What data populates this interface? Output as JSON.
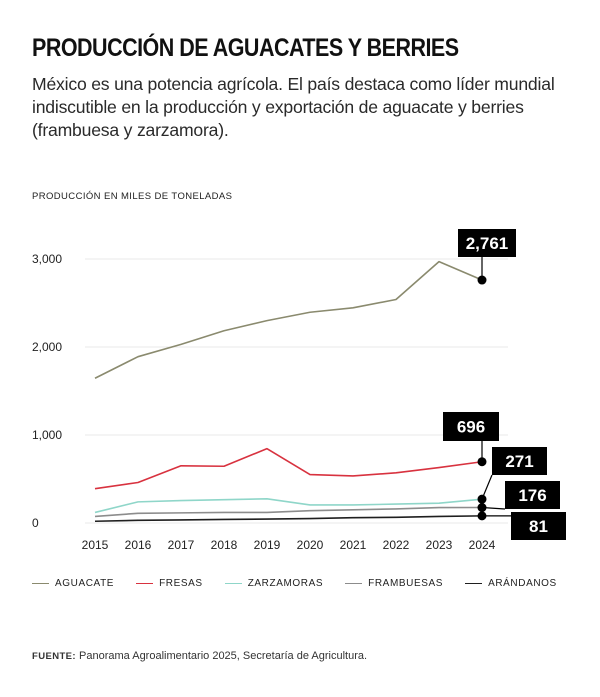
{
  "header": {
    "title": "PRODUCCIÓN DE AGUACATES Y BERRIES",
    "subtitle": "México es una potencia agrícola. El país destaca como líder mundial indiscutible en la producción y exportación de aguacate y berries (frambuesa y zarzamora)."
  },
  "footer": {
    "source_label": "FUENTE:",
    "source_text": "Panorama Agroalimentario 2025, Secretaría de Agricultura."
  },
  "chart_data": {
    "type": "line",
    "title": "PRODUCCIÓN DE AGUACATES Y BERRIES",
    "ylabel": "PRODUCCIÓN EN MILES DE TONELADAS",
    "xlabel": "",
    "x": [
      2015,
      2016,
      2017,
      2018,
      2019,
      2020,
      2021,
      2022,
      2023,
      2024
    ],
    "ylim": [
      0,
      3000
    ],
    "yticks": [
      0,
      1000,
      2000,
      3000
    ],
    "ytick_labels": [
      "0",
      "1,000",
      "2,000",
      "3,000"
    ],
    "grid": true,
    "legend_position": "bottom",
    "series": [
      {
        "name": "AGUACATE",
        "color": "#8a8a6e",
        "values": [
          1645,
          1890,
          2030,
          2185,
          2300,
          2395,
          2445,
          2540,
          2970,
          2761
        ],
        "end_label": "2,761"
      },
      {
        "name": "FRESAS",
        "color": "#d8323f",
        "values": [
          390,
          460,
          650,
          645,
          845,
          550,
          535,
          570,
          630,
          696
        ],
        "end_label": "696"
      },
      {
        "name": "ZARZAMORAS",
        "color": "#8fd6c9",
        "values": [
          120,
          240,
          255,
          265,
          275,
          205,
          205,
          215,
          225,
          271
        ],
        "end_label": "271"
      },
      {
        "name": "FRAMBUESAS",
        "color": "#8c8c8c",
        "values": [
          75,
          110,
          115,
          120,
          120,
          140,
          150,
          160,
          175,
          176
        ],
        "end_label": "176"
      },
      {
        "name": "ARÁNDANOS",
        "color": "#1f1f1f",
        "values": [
          20,
          30,
          35,
          40,
          45,
          50,
          60,
          65,
          75,
          81
        ],
        "end_label": "81"
      }
    ]
  }
}
